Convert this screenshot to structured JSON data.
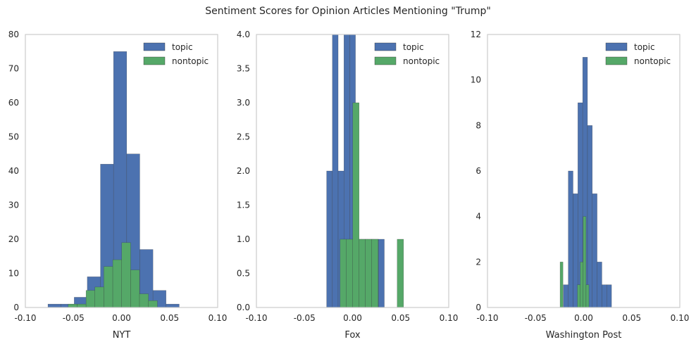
{
  "title": "Sentiment Scores for Opinion Articles Mentioning \"Trump\"",
  "colors": {
    "topic": "#4c72b0",
    "nontopic": "#55a868",
    "axis": "#cccccc",
    "text": "#262626"
  },
  "chart_data": [
    {
      "type": "bar",
      "xlabel": "NYT",
      "ylabel": "",
      "xlim": [
        -0.1,
        0.1
      ],
      "ylim": [
        0,
        80
      ],
      "xticks": [
        "-0.10",
        "-0.05",
        "0.00",
        "0.05",
        "0.10"
      ],
      "xtick_values": [
        -0.1,
        -0.05,
        0.0,
        0.05,
        0.1
      ],
      "yticks": [
        "0",
        "10",
        "20",
        "30",
        "40",
        "50",
        "60",
        "70",
        "80"
      ],
      "ytick_values": [
        0,
        10,
        20,
        30,
        40,
        50,
        60,
        70,
        80
      ],
      "grid": false,
      "legend": "upper-right",
      "series": [
        {
          "name": "topic",
          "bin_edges": [
            -0.0765,
            -0.0629,
            -0.0492,
            -0.0356,
            -0.0219,
            -0.0083,
            0.0054,
            0.019,
            0.0327,
            0.0463,
            0.06
          ],
          "counts": [
            1,
            1,
            3,
            9,
            42,
            75,
            45,
            17,
            5,
            1
          ]
        },
        {
          "name": "nontopic",
          "bin_edges": [
            -0.0555,
            -0.0462,
            -0.0369,
            -0.0277,
            -0.0184,
            -0.0091,
            0.0002,
            0.0095,
            0.0187,
            0.028,
            0.0373
          ],
          "counts": [
            1,
            1,
            5,
            6,
            12,
            14,
            19,
            11,
            4,
            2
          ]
        }
      ]
    },
    {
      "type": "bar",
      "xlabel": "Fox",
      "ylabel": "",
      "xlim": [
        -0.1,
        0.1
      ],
      "ylim": [
        0,
        4.0
      ],
      "xticks": [
        "-0.10",
        "-0.05",
        "0.00",
        "0.05",
        "0.10"
      ],
      "xtick_values": [
        -0.1,
        -0.05,
        0.0,
        0.05,
        0.1
      ],
      "yticks": [
        "0.0",
        "0.5",
        "1.0",
        "1.5",
        "2.0",
        "2.5",
        "3.0",
        "3.5",
        "4.0"
      ],
      "ytick_values": [
        0,
        0.5,
        1.0,
        1.5,
        2.0,
        2.5,
        3.0,
        3.5,
        4.0
      ],
      "grid": false,
      "legend": "upper-right",
      "series": [
        {
          "name": "topic",
          "bin_edges": [
            -0.027,
            -0.021,
            -0.015,
            -0.009,
            -0.003,
            0.003,
            0.009,
            0.015,
            0.021,
            0.027,
            0.033
          ],
          "counts": [
            2,
            5,
            2,
            5,
            4,
            1,
            1,
            1,
            1,
            1
          ]
        },
        {
          "name": "nontopic",
          "bin_edges": [
            -0.013,
            -0.0064,
            0.0002,
            0.0068,
            0.0134,
            0.02,
            0.0266,
            0.0332,
            0.0398,
            0.0464,
            0.053
          ],
          "counts": [
            1,
            1,
            3,
            1,
            1,
            1,
            0,
            0,
            0,
            1
          ]
        }
      ]
    },
    {
      "type": "bar",
      "xlabel": "Washington Post",
      "ylabel": "",
      "xlim": [
        -0.1,
        0.1
      ],
      "ylim": [
        0,
        12
      ],
      "xticks": [
        "-0.10",
        "-0.05",
        "0.00",
        "0.05",
        "0.10"
      ],
      "xtick_values": [
        -0.1,
        -0.05,
        0.0,
        0.05,
        0.1
      ],
      "yticks": [
        "0",
        "2",
        "4",
        "6",
        "8",
        "10",
        "12"
      ],
      "ytick_values": [
        0,
        2,
        4,
        6,
        8,
        10,
        12
      ],
      "grid": false,
      "legend": "upper-right",
      "series": [
        {
          "name": "topic",
          "bin_edges": [
            -0.021,
            -0.016,
            -0.011,
            -0.006,
            -0.001,
            0.004,
            0.009,
            0.014,
            0.019,
            0.024,
            0.029
          ],
          "counts": [
            1,
            6,
            5,
            9,
            11,
            8,
            5,
            2,
            1,
            1
          ]
        },
        {
          "name": "nontopic",
          "bin_edges": [
            -0.0245,
            -0.0215,
            -0.0185,
            -0.0155,
            -0.0125,
            -0.0095,
            -0.0065,
            -0.0035,
            -0.0005,
            0.0025,
            0.0055
          ],
          "counts": [
            2,
            0,
            0,
            0,
            0,
            0,
            1,
            2,
            4,
            1
          ]
        }
      ]
    }
  ]
}
